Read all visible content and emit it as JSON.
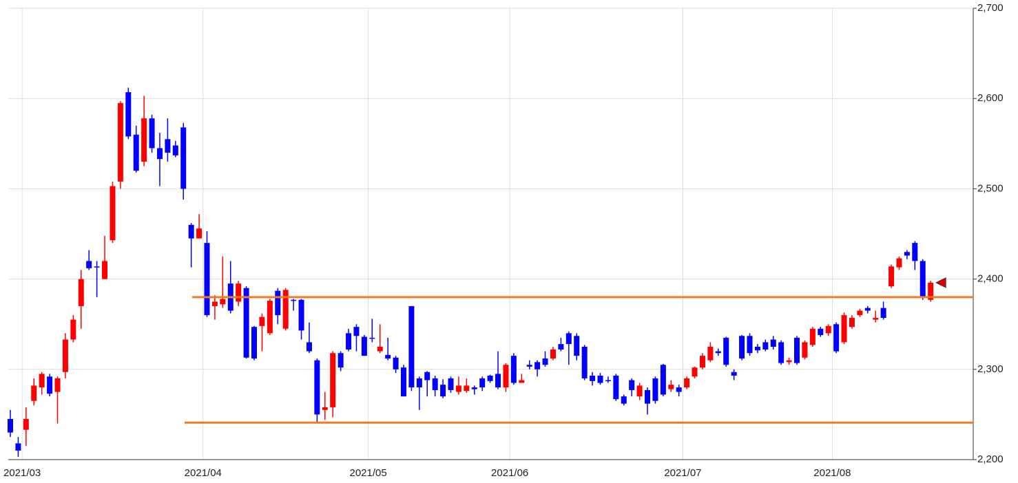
{
  "chart_data": {
    "type": "candlestick",
    "categories": [
      null,
      null,
      "2021/03",
      null,
      null,
      null,
      null,
      null,
      null,
      null,
      null,
      null,
      null,
      null,
      null,
      null,
      null,
      null,
      null,
      null,
      null,
      null,
      null,
      null,
      null,
      "2021/04",
      null,
      null,
      null,
      null,
      null,
      null,
      null,
      null,
      null,
      null,
      null,
      null,
      null,
      null,
      null,
      null,
      null,
      null,
      null,
      null,
      "2021/05",
      null,
      null,
      null,
      null,
      null,
      null,
      null,
      null,
      null,
      null,
      null,
      null,
      null,
      null,
      null,
      null,
      null,
      "2021/06",
      null,
      null,
      null,
      null,
      null,
      null,
      null,
      null,
      null,
      null,
      null,
      null,
      null,
      null,
      null,
      null,
      null,
      null,
      null,
      null,
      null,
      "2021/07",
      null,
      null,
      null,
      null,
      null,
      null,
      null,
      null,
      null,
      null,
      null,
      null,
      null,
      null,
      null,
      null,
      null,
      null,
      "2021/08",
      null,
      null,
      null,
      null,
      null,
      null,
      null,
      null,
      null,
      null,
      null,
      null
    ],
    "open": [
      2245,
      2218,
      2233,
      2265,
      2280,
      2292,
      2275,
      2297,
      2333,
      2370,
      2420,
      2414,
      2400,
      2443,
      2508,
      2607,
      2560,
      2530,
      2578,
      2545,
      2555,
      2548,
      2568,
      2460,
      2445,
      2440,
      2370,
      2372,
      2395,
      2375,
      2390,
      2347,
      2348,
      2340,
      2387,
      2345,
      2377,
      2377,
      2330,
      2310,
      2255,
      2258,
      2318,
      2340,
      2347,
      2336,
      2335,
      2320,
      2316,
      2313,
      2302,
      2370,
      2290,
      2297,
      2290,
      2283,
      2290,
      2275,
      2276,
      2280,
      2290,
      2293,
      2295,
      2280,
      2315,
      2285,
      2305,
      2308,
      2312,
      2312,
      2328,
      2340,
      2337,
      2325,
      2293,
      2293,
      2288,
      2293,
      2270,
      2288,
      2270,
      2277,
      2290,
      2305,
      2278,
      2280,
      2280,
      2292,
      2302,
      2310,
      2320,
      2335,
      2297,
      2337,
      2337,
      2325,
      2330,
      2333,
      2330,
      2308,
      2335,
      2313,
      2327,
      2345,
      2340,
      2350,
      2330,
      2347,
      2360,
      2368,
      2355,
      2368,
      2392,
      2413,
      2430,
      2440,
      2420,
      2377
    ],
    "high": [
      2255,
      2225,
      2258,
      2290,
      2297,
      2295,
      2292,
      2340,
      2360,
      2410,
      2432,
      2420,
      2448,
      2508,
      2597,
      2612,
      2570,
      2603,
      2582,
      2562,
      2578,
      2553,
      2573,
      2462,
      2472,
      2453,
      2382,
      2425,
      2420,
      2398,
      2392,
      2348,
      2362,
      2378,
      2390,
      2390,
      2378,
      2378,
      2352,
      2312,
      2275,
      2320,
      2320,
      2345,
      2350,
      2338,
      2356,
      2350,
      2335,
      2315,
      2305,
      2370,
      2292,
      2298,
      2293,
      2289,
      2292,
      2292,
      2290,
      2282,
      2292,
      2294,
      2320,
      2307,
      2318,
      2295,
      2310,
      2310,
      2320,
      2325,
      2335,
      2342,
      2340,
      2327,
      2297,
      2296,
      2292,
      2295,
      2272,
      2290,
      2285,
      2280,
      2292,
      2306,
      2288,
      2283,
      2292,
      2303,
      2318,
      2330,
      2323,
      2336,
      2300,
      2338,
      2340,
      2328,
      2333,
      2337,
      2332,
      2313,
      2337,
      2332,
      2347,
      2347,
      2350,
      2352,
      2363,
      2360,
      2367,
      2370,
      2365,
      2375,
      2416,
      2425,
      2432,
      2442,
      2422,
      2398
    ],
    "low": [
      2225,
      2203,
      2215,
      2260,
      2272,
      2270,
      2240,
      2290,
      2330,
      2345,
      2410,
      2380,
      2400,
      2440,
      2500,
      2555,
      2518,
      2525,
      2540,
      2503,
      2530,
      2535,
      2488,
      2413,
      2445,
      2358,
      2355,
      2368,
      2362,
      2370,
      2312,
      2310,
      2320,
      2338,
      2350,
      2343,
      2365,
      2333,
      2318,
      2242,
      2244,
      2247,
      2298,
      2320,
      2320,
      2315,
      2330,
      2318,
      2310,
      2296,
      2270,
      2276,
      2255,
      2270,
      2270,
      2268,
      2274,
      2272,
      2274,
      2272,
      2276,
      2285,
      2278,
      2275,
      2283,
      2285,
      2300,
      2292,
      2303,
      2310,
      2320,
      2305,
      2310,
      2288,
      2282,
      2283,
      2285,
      2265,
      2260,
      2270,
      2266,
      2250,
      2262,
      2270,
      2275,
      2270,
      2278,
      2290,
      2300,
      2308,
      2315,
      2303,
      2288,
      2310,
      2315,
      2318,
      2320,
      2322,
      2305,
      2305,
      2305,
      2311,
      2325,
      2336,
      2337,
      2318,
      2328,
      2345,
      2358,
      2362,
      2352,
      2355,
      2390,
      2410,
      2422,
      2410,
      2377,
      2375
    ],
    "close": [
      2230,
      2210,
      2245,
      2282,
      2295,
      2273,
      2290,
      2333,
      2355,
      2400,
      2412,
      2413,
      2420,
      2503,
      2595,
      2558,
      2520,
      2578,
      2545,
      2533,
      2540,
      2537,
      2500,
      2445,
      2456,
      2360,
      2375,
      2378,
      2365,
      2395,
      2313,
      2312,
      2358,
      2376,
      2360,
      2388,
      2377,
      2343,
      2320,
      2250,
      2258,
      2318,
      2302,
      2322,
      2337,
      2315,
      2334,
      2325,
      2312,
      2300,
      2270,
      2280,
      2280,
      2288,
      2277,
      2270,
      2277,
      2282,
      2282,
      2278,
      2280,
      2287,
      2280,
      2305,
      2285,
      2288,
      2303,
      2300,
      2305,
      2322,
      2322,
      2328,
      2315,
      2290,
      2287,
      2285,
      2287,
      2267,
      2262,
      2277,
      2282,
      2262,
      2265,
      2272,
      2283,
      2275,
      2290,
      2302,
      2315,
      2325,
      2318,
      2305,
      2293,
      2312,
      2318,
      2321,
      2322,
      2325,
      2307,
      2310,
      2307,
      2330,
      2345,
      2338,
      2348,
      2320,
      2360,
      2357,
      2365,
      2365,
      2357,
      2357,
      2414,
      2423,
      2426,
      2420,
      2380,
      2396
    ],
    "up_color": "#ff0000",
    "down_color": "#0000ff",
    "level_lines": [
      {
        "value": 2380,
        "color": "#f47a20"
      },
      {
        "value": 2241,
        "color": "#f47a20"
      }
    ],
    "ylim": [
      2200,
      2700
    ],
    "yticks": [
      {
        "value": 2200,
        "label": "2,200"
      },
      {
        "value": 2300,
        "label": "2,300"
      },
      {
        "value": 2400,
        "label": "2,400"
      },
      {
        "value": 2500,
        "label": "2,500"
      },
      {
        "value": 2600,
        "label": "2,600"
      },
      {
        "value": 2700,
        "label": "2,700"
      }
    ],
    "grid": true
  }
}
